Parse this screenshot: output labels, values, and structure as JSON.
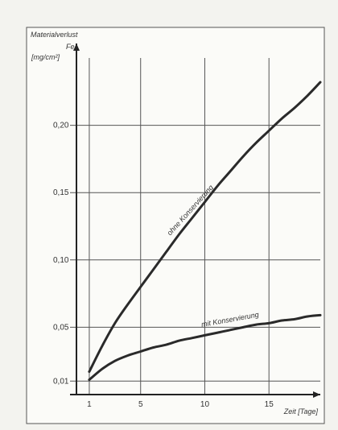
{
  "chart_data": {
    "type": "line",
    "title": "Materialverlust",
    "ylabel_symbol": "Fe",
    "ylabel_unit": "[mg/cm²]",
    "xlabel": "Zeit [Tage]",
    "xlim": [
      0,
      19
    ],
    "ylim": [
      0,
      0.25
    ],
    "x_ticks": [
      1,
      5,
      10,
      15
    ],
    "x_tick_labels": [
      "1",
      "5",
      "10",
      "15"
    ],
    "y_ticks": [
      0.01,
      0.05,
      0.1,
      0.15,
      0.2
    ],
    "y_tick_labels": [
      "0,01",
      "0,05",
      "0,10",
      "0,15",
      "0,20"
    ],
    "grid": true,
    "series": [
      {
        "name": "ohne Konservierung",
        "x": [
          1,
          2,
          3,
          4,
          5,
          6,
          7,
          8,
          9,
          10,
          11,
          12,
          13,
          14,
          15,
          16,
          17,
          18,
          19
        ],
        "y": [
          0.017,
          0.036,
          0.053,
          0.067,
          0.08,
          0.093,
          0.106,
          0.119,
          0.131,
          0.143,
          0.155,
          0.166,
          0.177,
          0.187,
          0.196,
          0.205,
          0.213,
          0.222,
          0.232
        ]
      },
      {
        "name": "mit Konservierung",
        "x": [
          1,
          2,
          3,
          4,
          5,
          6,
          7,
          8,
          9,
          10,
          11,
          12,
          13,
          14,
          15,
          16,
          17,
          18,
          19
        ],
        "y": [
          0.011,
          0.019,
          0.025,
          0.029,
          0.032,
          0.035,
          0.037,
          0.04,
          0.042,
          0.044,
          0.046,
          0.048,
          0.05,
          0.052,
          0.053,
          0.055,
          0.056,
          0.058,
          0.059
        ]
      }
    ]
  }
}
